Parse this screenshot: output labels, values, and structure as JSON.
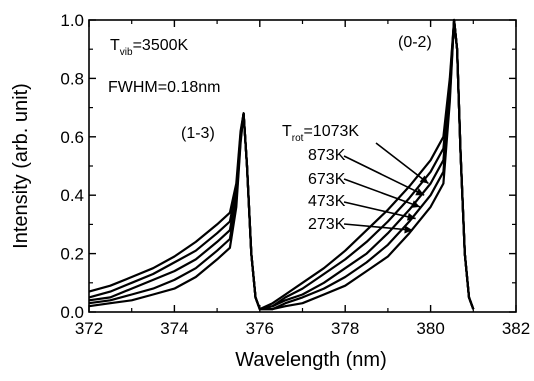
{
  "chart_data": {
    "type": "line",
    "xlabel": "Wavelength (nm)",
    "ylabel": "Intensity (arb. unit)",
    "xlim": [
      372,
      382
    ],
    "ylim": [
      0.0,
      1.0
    ],
    "x_ticks": [
      "372",
      "374",
      "376",
      "378",
      "380",
      "382"
    ],
    "y_ticks": [
      "0.0",
      "0.2",
      "0.4",
      "0.6",
      "0.8",
      "1.0"
    ],
    "grid": false,
    "annotations": {
      "tvib": {
        "main": "T",
        "sub": "vib",
        "value": "=3500K"
      },
      "fwhm": "FWHM=0.18nm",
      "band_13": "(1-3)",
      "band_02": "(0-2)",
      "trot": {
        "main": "T",
        "sub": "rot",
        "value": "=1073K"
      },
      "temps": [
        "873K",
        "673K",
        "473K",
        "273K"
      ]
    },
    "series": [
      {
        "name": "1073K",
        "x": [
          372.0,
          372.5,
          373.0,
          373.5,
          374.0,
          374.5,
          375.0,
          375.3,
          375.45,
          375.55,
          375.62,
          375.7,
          375.8,
          375.9,
          376.0,
          376.3,
          376.6,
          377.0,
          377.5,
          378.0,
          378.5,
          379.0,
          379.5,
          380.0,
          380.3,
          380.45,
          380.55,
          380.62,
          380.7,
          380.8,
          380.9,
          381.0
        ],
        "y": [
          0.07,
          0.09,
          0.12,
          0.15,
          0.19,
          0.24,
          0.3,
          0.34,
          0.44,
          0.62,
          0.68,
          0.5,
          0.2,
          0.05,
          0.01,
          0.03,
          0.06,
          0.1,
          0.15,
          0.21,
          0.28,
          0.35,
          0.43,
          0.52,
          0.6,
          0.8,
          1.0,
          0.9,
          0.55,
          0.2,
          0.05,
          0.01
        ]
      },
      {
        "name": "873K",
        "x": [
          372.0,
          372.5,
          373.0,
          373.5,
          374.0,
          374.5,
          375.0,
          375.3,
          375.45,
          375.55,
          375.62,
          375.7,
          375.8,
          375.9,
          376.0,
          376.3,
          376.6,
          377.0,
          377.5,
          378.0,
          378.5,
          379.0,
          379.5,
          380.0,
          380.3,
          380.45,
          380.55,
          380.62,
          380.7,
          380.8,
          380.9,
          381.0
        ],
        "y": [
          0.05,
          0.07,
          0.1,
          0.13,
          0.17,
          0.21,
          0.27,
          0.31,
          0.42,
          0.61,
          0.68,
          0.5,
          0.2,
          0.05,
          0.01,
          0.02,
          0.05,
          0.08,
          0.13,
          0.18,
          0.24,
          0.31,
          0.39,
          0.48,
          0.56,
          0.78,
          1.0,
          0.9,
          0.55,
          0.2,
          0.05,
          0.01
        ]
      },
      {
        "name": "673K",
        "x": [
          372.0,
          372.5,
          373.0,
          373.5,
          374.0,
          374.5,
          375.0,
          375.3,
          375.45,
          375.55,
          375.62,
          375.7,
          375.8,
          375.9,
          376.0,
          376.3,
          376.6,
          377.0,
          377.5,
          378.0,
          378.5,
          379.0,
          379.5,
          380.0,
          380.3,
          380.45,
          380.55,
          380.62,
          380.7,
          380.8,
          380.9,
          381.0
        ],
        "y": [
          0.04,
          0.05,
          0.08,
          0.11,
          0.14,
          0.18,
          0.24,
          0.28,
          0.4,
          0.6,
          0.68,
          0.5,
          0.2,
          0.05,
          0.01,
          0.02,
          0.04,
          0.06,
          0.1,
          0.15,
          0.2,
          0.27,
          0.35,
          0.44,
          0.52,
          0.76,
          1.0,
          0.9,
          0.55,
          0.2,
          0.05,
          0.01
        ]
      },
      {
        "name": "473K",
        "x": [
          372.0,
          372.5,
          373.0,
          373.5,
          374.0,
          374.5,
          375.0,
          375.3,
          375.45,
          375.55,
          375.62,
          375.7,
          375.8,
          375.9,
          376.0,
          376.3,
          376.6,
          377.0,
          377.5,
          378.0,
          378.5,
          379.0,
          379.5,
          380.0,
          380.3,
          380.45,
          380.55,
          380.62,
          380.7,
          380.8,
          380.9,
          381.0
        ],
        "y": [
          0.03,
          0.04,
          0.06,
          0.08,
          0.11,
          0.15,
          0.21,
          0.25,
          0.38,
          0.59,
          0.68,
          0.5,
          0.2,
          0.05,
          0.01,
          0.01,
          0.03,
          0.05,
          0.08,
          0.12,
          0.17,
          0.23,
          0.31,
          0.4,
          0.48,
          0.74,
          1.0,
          0.9,
          0.55,
          0.2,
          0.05,
          0.01
        ]
      },
      {
        "name": "273K",
        "x": [
          372.0,
          372.5,
          373.0,
          373.5,
          374.0,
          374.5,
          375.0,
          375.3,
          375.45,
          375.55,
          375.62,
          375.7,
          375.8,
          375.9,
          376.0,
          376.3,
          376.6,
          377.0,
          377.5,
          378.0,
          378.5,
          379.0,
          379.5,
          380.0,
          380.3,
          380.45,
          380.55,
          380.62,
          380.7,
          380.8,
          380.9,
          381.0
        ],
        "y": [
          0.02,
          0.03,
          0.04,
          0.06,
          0.08,
          0.12,
          0.18,
          0.22,
          0.36,
          0.58,
          0.68,
          0.5,
          0.2,
          0.05,
          0.01,
          0.01,
          0.02,
          0.03,
          0.06,
          0.09,
          0.14,
          0.19,
          0.27,
          0.36,
          0.44,
          0.72,
          1.0,
          0.9,
          0.55,
          0.2,
          0.05,
          0.01
        ]
      }
    ],
    "arrow_targets": [
      {
        "x": 379.95,
        "y": 0.44
      },
      {
        "x": 379.85,
        "y": 0.4
      },
      {
        "x": 379.75,
        "y": 0.36
      },
      {
        "x": 379.65,
        "y": 0.32
      },
      {
        "x": 379.58,
        "y": 0.28
      }
    ]
  }
}
